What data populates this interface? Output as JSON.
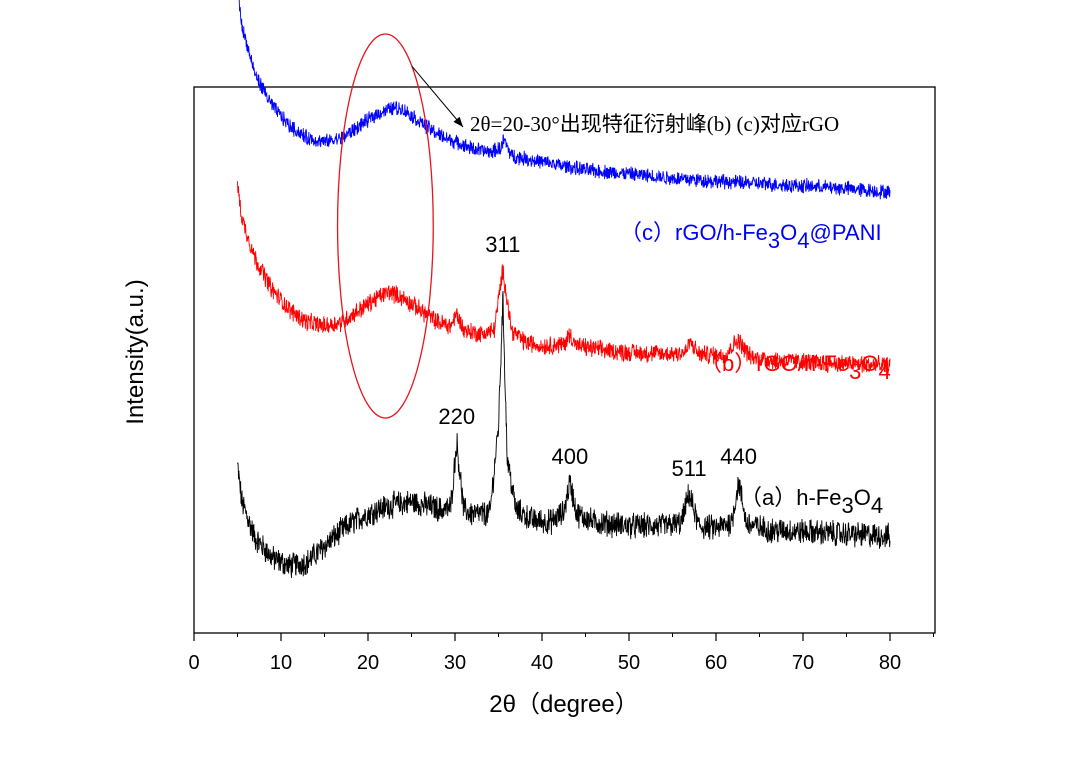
{
  "chart_data": {
    "type": "line",
    "title": "",
    "xlabel": "2θ（degree）",
    "ylabel": "Intensity(a.u.)",
    "xlim": [
      0,
      85
    ],
    "xticks": [
      0,
      10,
      20,
      30,
      40,
      50,
      60,
      70,
      80
    ],
    "yticks": [],
    "grid": false,
    "series": [
      {
        "id": "a",
        "name_prefix": "（a）h-Fe",
        "sub1": "3",
        "mid": "O",
        "sub2": "4",
        "name_suffix": "",
        "color": "#000000",
        "x": [
          5,
          5.5,
          7,
          9,
          11,
          13,
          15,
          17,
          19,
          21,
          23,
          25,
          27,
          28.5,
          29.5,
          30.2,
          31,
          32,
          34,
          35,
          35.5,
          36,
          37,
          39,
          41,
          42.5,
          43.2,
          44,
          46,
          50,
          54,
          56,
          56.9,
          58,
          60,
          61.8,
          62.6,
          63.5,
          66,
          70,
          75,
          80
        ],
        "y": [
          1.3,
          0.85,
          0.4,
          0.15,
          0.05,
          0.1,
          0.3,
          0.5,
          0.65,
          0.75,
          0.82,
          0.85,
          0.8,
          0.75,
          0.78,
          1.6,
          0.75,
          0.7,
          0.7,
          1.8,
          3.4,
          1.4,
          0.75,
          0.62,
          0.6,
          0.72,
          1.1,
          0.7,
          0.6,
          0.55,
          0.55,
          0.58,
          0.95,
          0.55,
          0.52,
          0.6,
          1.1,
          0.58,
          0.5,
          0.48,
          0.45,
          0.42
        ]
      },
      {
        "id": "b",
        "name_prefix": "（b）rGO/h-Fe",
        "sub1": "3",
        "mid": "O",
        "sub2": "4",
        "name_suffix": "",
        "color": "#ff0000",
        "x": [
          5,
          5.5,
          7,
          9,
          11,
          13,
          15,
          17,
          19,
          21,
          22.5,
          24,
          26,
          28,
          29.5,
          30.2,
          31,
          33,
          34.5,
          35.5,
          36.5,
          38,
          40,
          42.5,
          43.2,
          44,
          47,
          50,
          54,
          56.5,
          57,
          58,
          61,
          62.5,
          64,
          67,
          70,
          75,
          80
        ],
        "y": [
          4.8,
          4.4,
          3.9,
          3.5,
          3.25,
          3.1,
          3.05,
          3.1,
          3.25,
          3.4,
          3.48,
          3.4,
          3.25,
          3.1,
          3.05,
          3.2,
          3.0,
          2.95,
          3.0,
          3.75,
          3.0,
          2.85,
          2.8,
          2.82,
          2.95,
          2.8,
          2.75,
          2.72,
          2.7,
          2.72,
          2.85,
          2.7,
          2.68,
          2.88,
          2.66,
          2.62,
          2.6,
          2.58,
          2.55
        ]
      },
      {
        "id": "c",
        "name_prefix": "（c）rGO/h-Fe",
        "sub1": "3",
        "mid": "O",
        "sub2": "4",
        "name_suffix": "@PANI",
        "color": "#0000ff",
        "x": [
          5,
          5.5,
          7,
          9,
          11,
          13,
          15,
          17,
          19,
          21,
          23,
          24,
          26,
          28,
          30,
          32,
          34,
          35.3,
          35.6,
          36.5,
          40,
          45,
          50,
          55,
          60,
          65,
          70,
          75,
          80
        ],
        "y": [
          7.3,
          6.8,
          6.2,
          5.8,
          5.55,
          5.4,
          5.35,
          5.4,
          5.55,
          5.7,
          5.78,
          5.76,
          5.6,
          5.45,
          5.35,
          5.27,
          5.22,
          5.28,
          5.38,
          5.18,
          5.1,
          5.0,
          4.95,
          4.9,
          4.86,
          4.83,
          4.8,
          4.77,
          4.72
        ]
      }
    ],
    "peak_labels": [
      {
        "text": "220",
        "x": 30.2,
        "y": 1.6
      },
      {
        "text": "311",
        "x": 35.5,
        "y": 3.75
      },
      {
        "text": "400",
        "x": 43.2,
        "y": 1.1
      },
      {
        "text": "511",
        "x": 56.9,
        "y": 0.95
      },
      {
        "text": "440",
        "x": 62.6,
        "y": 1.1
      }
    ],
    "annotation": {
      "text": "2θ=20-30°出现特征衍射峰(b) (c)对应rGO",
      "ellipse_center_x": 22,
      "ellipse_center_y": 4.3,
      "ellipse_x_halfwidth": 5.5,
      "ellipse_y_halfheight": 2.4
    }
  }
}
